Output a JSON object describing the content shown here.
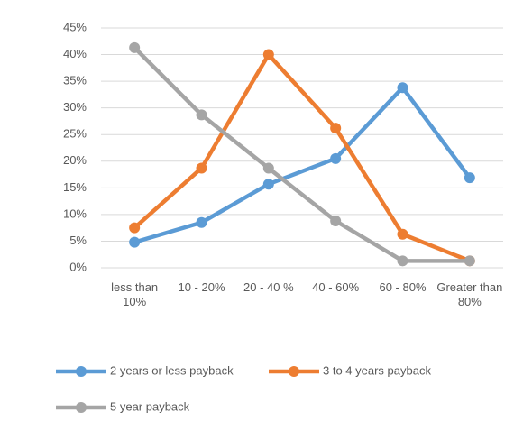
{
  "chart_data": {
    "type": "line",
    "categories": [
      "less than 10%",
      "10 - 20%",
      "20 - 40 %",
      "40 - 60%",
      "60 - 80%",
      "Greater than 80%"
    ],
    "series": [
      {
        "name": "2 years or less payback",
        "color": "#5b9bd5",
        "values": [
          4.8,
          8.5,
          15.7,
          20.5,
          33.8,
          16.9
        ]
      },
      {
        "name": "3 to 4 years payback",
        "color": "#ed7d31",
        "values": [
          7.5,
          18.7,
          40,
          26.2,
          6.3,
          1.3
        ]
      },
      {
        "name": "5 year payback",
        "color": "#a5a5a5",
        "values": [
          41.3,
          28.7,
          18.7,
          8.8,
          1.3,
          1.3
        ]
      }
    ],
    "ylim": [
      0,
      45
    ],
    "yticks": [
      {
        "value": 0,
        "label": "0%"
      },
      {
        "value": 5,
        "label": "5%"
      },
      {
        "value": 10,
        "label": "10%"
      },
      {
        "value": 15,
        "label": "15%"
      },
      {
        "value": 20,
        "label": "20%"
      },
      {
        "value": 25,
        "label": "25%"
      },
      {
        "value": 30,
        "label": "30%"
      },
      {
        "value": 35,
        "label": "35%"
      },
      {
        "value": 40,
        "label": "40%"
      },
      {
        "value": 45,
        "label": "45%"
      }
    ],
    "grid": true,
    "legend": "bottom"
  }
}
